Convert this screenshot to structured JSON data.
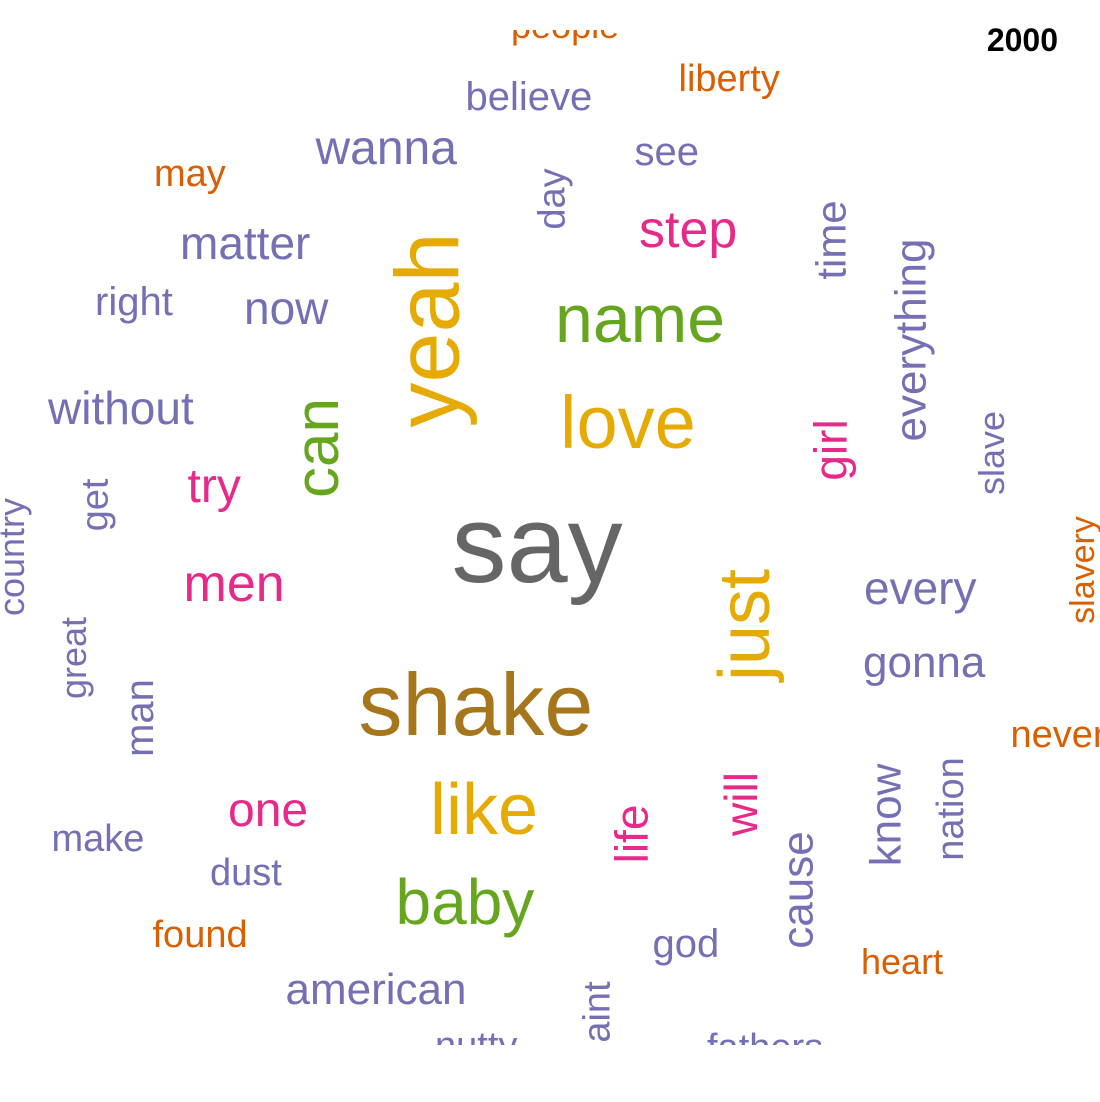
{
  "year": "2000",
  "palette": {
    "gray": "#666666",
    "brown": "#a6761d",
    "gold": "#e6ab02",
    "green": "#66a61e",
    "magenta": "#e7298a",
    "purple": "#7570b3",
    "orange": "#d95f02"
  },
  "words": [
    {
      "text": "say",
      "color": "gray",
      "rotated": false
    },
    {
      "text": "shake",
      "color": "brown",
      "rotated": false
    },
    {
      "text": "love",
      "color": "gold",
      "rotated": false
    },
    {
      "text": "name",
      "color": "green",
      "rotated": false
    },
    {
      "text": "yeah",
      "color": "gold",
      "rotated": true
    },
    {
      "text": "just",
      "color": "gold",
      "rotated": true
    },
    {
      "text": "like",
      "color": "gold",
      "rotated": false
    },
    {
      "text": "baby",
      "color": "green",
      "rotated": false
    },
    {
      "text": "can",
      "color": "green",
      "rotated": true
    },
    {
      "text": "men",
      "color": "magenta",
      "rotated": false
    },
    {
      "text": "step",
      "color": "magenta",
      "rotated": false
    },
    {
      "text": "girl",
      "color": "magenta",
      "rotated": true
    },
    {
      "text": "try",
      "color": "magenta",
      "rotated": false
    },
    {
      "text": "one",
      "color": "magenta",
      "rotated": false
    },
    {
      "text": "life",
      "color": "magenta",
      "rotated": true
    },
    {
      "text": "will",
      "color": "magenta",
      "rotated": true
    },
    {
      "text": "wanna",
      "color": "purple",
      "rotated": false
    },
    {
      "text": "matter",
      "color": "purple",
      "rotated": false
    },
    {
      "text": "now",
      "color": "purple",
      "rotated": false
    },
    {
      "text": "without",
      "color": "purple",
      "rotated": false
    },
    {
      "text": "every",
      "color": "purple",
      "rotated": false
    },
    {
      "text": "gonna",
      "color": "purple",
      "rotated": false
    },
    {
      "text": "everything",
      "color": "purple",
      "rotated": true
    },
    {
      "text": "time",
      "color": "purple",
      "rotated": true
    },
    {
      "text": "day",
      "color": "purple",
      "rotated": true
    },
    {
      "text": "believe",
      "color": "purple",
      "rotated": false
    },
    {
      "text": "see",
      "color": "purple",
      "rotated": false
    },
    {
      "text": "right",
      "color": "purple",
      "rotated": false
    },
    {
      "text": "get",
      "color": "purple",
      "rotated": true
    },
    {
      "text": "country",
      "color": "purple",
      "rotated": true
    },
    {
      "text": "great",
      "color": "purple",
      "rotated": true
    },
    {
      "text": "man",
      "color": "purple",
      "rotated": true
    },
    {
      "text": "slave",
      "color": "purple",
      "rotated": true
    },
    {
      "text": "know",
      "color": "purple",
      "rotated": true
    },
    {
      "text": "nation",
      "color": "purple",
      "rotated": true
    },
    {
      "text": "cause",
      "color": "purple",
      "rotated": true
    },
    {
      "text": "make",
      "color": "purple",
      "rotated": false
    },
    {
      "text": "dust",
      "color": "purple",
      "rotated": false
    },
    {
      "text": "god",
      "color": "purple",
      "rotated": false
    },
    {
      "text": "american",
      "color": "purple",
      "rotated": false
    },
    {
      "text": "nutty",
      "color": "purple",
      "rotated": false
    },
    {
      "text": "aint",
      "color": "purple",
      "rotated": true
    },
    {
      "text": "fathers",
      "color": "purple",
      "rotated": false
    },
    {
      "text": "people",
      "color": "orange",
      "rotated": false
    },
    {
      "text": "liberty",
      "color": "orange",
      "rotated": false
    },
    {
      "text": "may",
      "color": "orange",
      "rotated": false
    },
    {
      "text": "slavery",
      "color": "orange",
      "rotated": true
    },
    {
      "text": "never",
      "color": "orange",
      "rotated": false
    },
    {
      "text": "found",
      "color": "orange",
      "rotated": false
    },
    {
      "text": "heart",
      "color": "orange",
      "rotated": false
    }
  ]
}
